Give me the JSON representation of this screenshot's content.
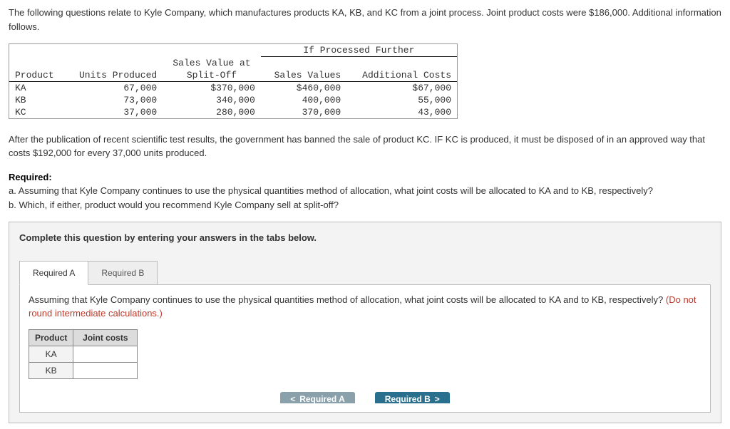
{
  "intro": "The following questions relate to Kyle Company, which manufactures products KA, KB, and KC from a joint process. Joint product costs were $186,000. Additional information follows.",
  "dataTable": {
    "groupHeader": "If Processed Further",
    "headers": {
      "product": "Product",
      "units": "Units Produced",
      "splitoff": "Sales Value at\nSplit-Off",
      "salesValues": "Sales Values",
      "addCosts": "Additional Costs"
    },
    "rows": [
      {
        "product": "KA",
        "units": "67,000",
        "split": "$370,000",
        "sv": "$460,000",
        "ac": "$67,000"
      },
      {
        "product": "KB",
        "units": "73,000",
        "split": "340,000",
        "sv": "400,000",
        "ac": "55,000"
      },
      {
        "product": "KC",
        "units": "37,000",
        "split": "280,000",
        "sv": "370,000",
        "ac": "43,000"
      }
    ]
  },
  "afterPara": "After the publication of recent scientific test results, the government has banned the sale of product KC. IF KC is produced, it must be disposed of in an approved way that costs $192,000 for every 37,000 units produced.",
  "required": {
    "label": "Required:",
    "a": "a. Assuming that Kyle Company continues to use the physical quantities method of allocation, what joint costs will be allocated to KA and to KB, respectively?",
    "b": "b. Which, if either, product would you recommend Kyle Company sell at split-off?"
  },
  "completeLine": "Complete this question by entering your answers in the tabs below.",
  "tabs": {
    "a": "Required A",
    "b": "Required B"
  },
  "prompt": {
    "main": "Assuming that Kyle Company continues to use the physical quantities method of allocation, what joint costs will be allocated to KA and to KB, respectively? ",
    "note": "(Do not round intermediate calculations.)"
  },
  "ansTable": {
    "col1": "Product",
    "col2": "Joint costs",
    "r1": "KA",
    "r2": "KB"
  },
  "nav": {
    "prev": "Required A",
    "next": "Required B"
  },
  "chev": {
    "left": "<",
    "right": ">"
  },
  "colors": {
    "pageBg": "#ffffff",
    "answerAreaBg": "#f3f3f3",
    "border": "#bbbbbb",
    "tableHeaderBg": "#dcdcdc",
    "noteText": "#c0392b",
    "navPrevBg": "#8aa0ab",
    "navNextBg": "#2b6f8e"
  }
}
